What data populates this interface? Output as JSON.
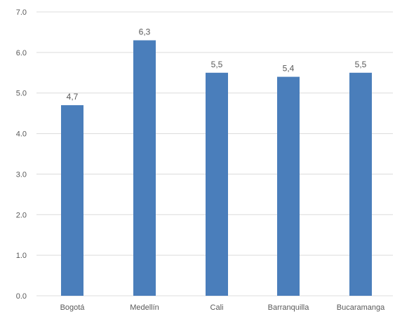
{
  "chart_data": {
    "type": "bar",
    "categories": [
      "Bogotá",
      "Medellín",
      "Cali",
      "Barranquilla",
      "Bucaramanga"
    ],
    "values": [
      4.7,
      6.3,
      5.5,
      5.4,
      5.5
    ],
    "data_labels": [
      "4,7",
      "6,3",
      "5,5",
      "5,4",
      "5,5"
    ],
    "y_ticks": [
      0,
      1,
      2,
      3,
      4,
      5,
      6,
      7
    ],
    "y_tick_labels": [
      "0.0",
      "1.0",
      "2.0",
      "3.0",
      "4.0",
      "5.0",
      "6.0",
      "7.0"
    ],
    "ylim": [
      0,
      7
    ],
    "grid": true,
    "legend": "none",
    "bar_color": "#4a7ebb",
    "grid_color": "#dcdcdc",
    "text_color": "#595959"
  }
}
